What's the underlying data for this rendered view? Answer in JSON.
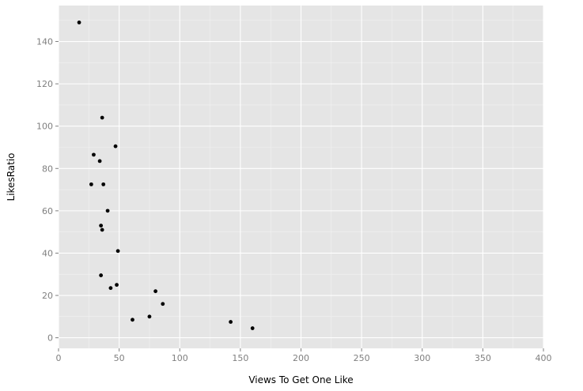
{
  "chart_data": {
    "type": "scatter",
    "title": "",
    "xlabel": "Views To Get One Like",
    "ylabel": "LikesRatio",
    "xlim": [
      0,
      400
    ],
    "ylim": [
      -5,
      157
    ],
    "x_ticks": [
      0,
      50,
      100,
      150,
      200,
      250,
      300,
      350,
      400
    ],
    "y_ticks": [
      0,
      20,
      40,
      60,
      80,
      100,
      120,
      140
    ],
    "grid": true,
    "legend": "none",
    "colors": {
      "panel": "#e5e5e5",
      "grid_major": "#ffffff",
      "grid_minor": "#f2f2f2",
      "point": "#000000",
      "tick_text": "#7f7f7f"
    },
    "points": [
      {
        "x": 17,
        "y": 149
      },
      {
        "x": 36,
        "y": 104
      },
      {
        "x": 47,
        "y": 90.5
      },
      {
        "x": 29,
        "y": 86.5
      },
      {
        "x": 34,
        "y": 83.5
      },
      {
        "x": 27,
        "y": 72.5
      },
      {
        "x": 37,
        "y": 72.5
      },
      {
        "x": 40.5,
        "y": 60
      },
      {
        "x": 35,
        "y": 53
      },
      {
        "x": 36,
        "y": 51
      },
      {
        "x": 49,
        "y": 41
      },
      {
        "x": 35,
        "y": 29.5
      },
      {
        "x": 48,
        "y": 25
      },
      {
        "x": 43,
        "y": 23.5
      },
      {
        "x": 80,
        "y": 22
      },
      {
        "x": 86,
        "y": 16
      },
      {
        "x": 75,
        "y": 10
      },
      {
        "x": 61,
        "y": 8.5
      },
      {
        "x": 142,
        "y": 7.5
      },
      {
        "x": 160,
        "y": 4.5
      }
    ]
  }
}
